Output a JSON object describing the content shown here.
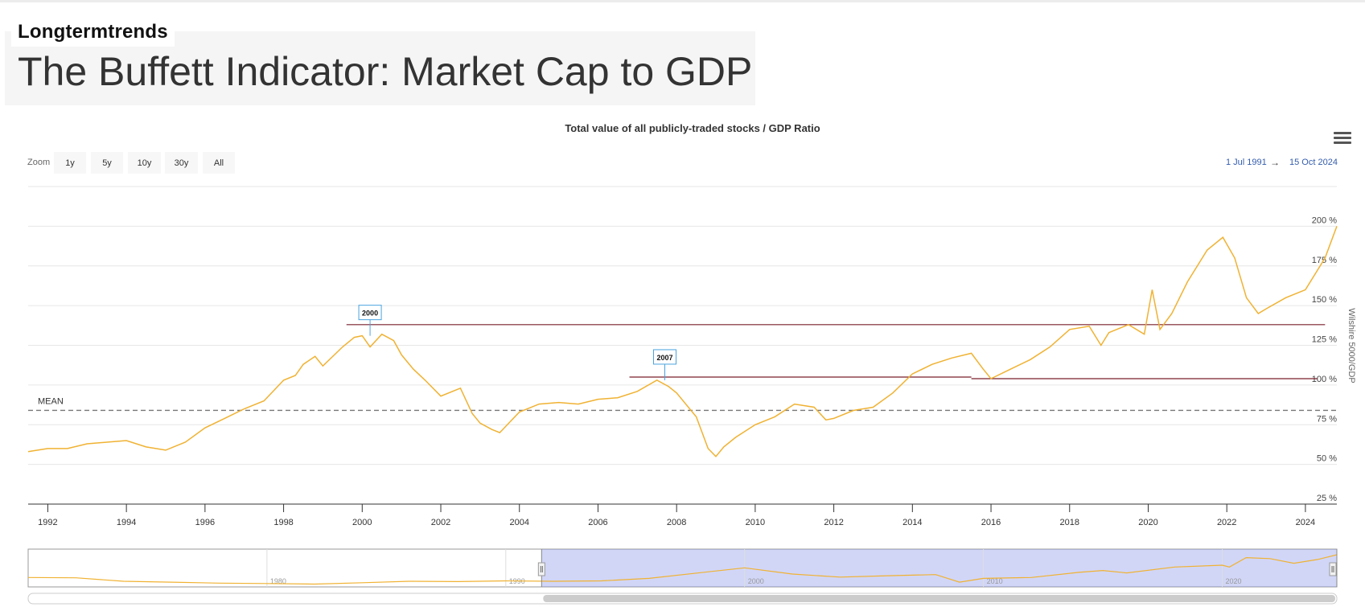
{
  "header": {
    "brand": "Longtermtrends",
    "title": "The Buffett Indicator: Market Cap to GDP"
  },
  "toolbar": {
    "zoom_label": "Zoom",
    "zoom_buttons": [
      "1y",
      "5y",
      "10y",
      "30y",
      "All"
    ],
    "range_from": "1 Jul 1991",
    "range_arrow": "→",
    "range_to": "15 Oct 2024",
    "menu_icon": "hamburger-menu-icon"
  },
  "chart_data": {
    "type": "line",
    "title": "Total value of all publicly-traded stocks / GDP Ratio",
    "ylabel": "Wilshire 5000/GDP",
    "xlim": [
      1991.5,
      2024.8
    ],
    "ylim": [
      25,
      225
    ],
    "yticks": [
      25,
      50,
      75,
      100,
      125,
      150,
      175,
      200
    ],
    "ytick_labels": [
      "25 %",
      "50 %",
      "75 %",
      "100 %",
      "125 %",
      "150 %",
      "175 %",
      "200 %"
    ],
    "xticks": [
      1992,
      1994,
      1996,
      1998,
      2000,
      2002,
      2004,
      2006,
      2008,
      2010,
      2012,
      2014,
      2016,
      2018,
      2020,
      2022,
      2024
    ],
    "line_color": "#f0b232",
    "series": [
      {
        "x": [
          1991.5,
          1992.0,
          1992.5,
          1993.0,
          1993.5,
          1994.0,
          1994.5,
          1995.0,
          1995.5,
          1996.0,
          1996.5,
          1997.0,
          1997.5,
          1998.0,
          1998.3,
          1998.5,
          1998.8,
          1999.0,
          1999.5,
          1999.8,
          2000.0,
          2000.2,
          2000.5,
          2000.8,
          2001.0,
          2001.3,
          2001.6,
          2002.0,
          2002.5,
          2002.8,
          2003.0,
          2003.3,
          2003.5,
          2004.0,
          2004.5,
          2005.0,
          2005.5,
          2006.0,
          2006.5,
          2007.0,
          2007.5,
          2007.8,
          2008.0,
          2008.5,
          2008.8,
          2009.0,
          2009.2,
          2009.5,
          2010.0,
          2010.5,
          2011.0,
          2011.5,
          2011.8,
          2012.0,
          2012.5,
          2013.0,
          2013.5,
          2014.0,
          2014.5,
          2015.0,
          2015.5,
          2015.8,
          2016.0,
          2016.5,
          2017.0,
          2017.5,
          2018.0,
          2018.5,
          2018.8,
          2019.0,
          2019.5,
          2019.9,
          2020.1,
          2020.3,
          2020.6,
          2021.0,
          2021.5,
          2021.9,
          2022.2,
          2022.5,
          2022.8,
          2023.0,
          2023.5,
          2024.0,
          2024.5,
          2024.8
        ],
        "y": [
          58,
          60,
          60,
          63,
          64,
          65,
          61,
          59,
          64,
          73,
          79,
          85,
          90,
          103,
          106,
          113,
          118,
          112,
          124,
          130,
          131,
          124,
          132,
          128,
          119,
          110,
          103,
          93,
          98,
          82,
          76,
          72,
          70,
          83,
          88,
          89,
          88,
          91,
          92,
          96,
          103,
          99,
          95,
          80,
          60,
          55,
          61,
          67,
          75,
          80,
          88,
          86,
          78,
          79,
          84,
          86,
          95,
          107,
          113,
          117,
          120,
          110,
          104,
          110,
          116,
          124,
          135,
          137,
          125,
          133,
          138,
          132,
          160,
          135,
          145,
          165,
          185,
          193,
          180,
          155,
          145,
          148,
          155,
          160,
          180,
          200
        ]
      }
    ],
    "annotations": [
      {
        "label": "MEAN",
        "type": "hline",
        "y": 84,
        "style": "dashed",
        "color": "#777777"
      },
      {
        "type": "segment",
        "x": [
          1999.6,
          2024.5
        ],
        "y": [
          138,
          138
        ],
        "color": "#7a1f2b"
      },
      {
        "type": "segment",
        "x": [
          2006.8,
          2015.5
        ],
        "y": [
          105,
          105
        ],
        "color": "#7a1f2b"
      },
      {
        "type": "segment",
        "x": [
          2015.5,
          2024.3
        ],
        "y": [
          104,
          104
        ],
        "color": "#7a1f2b"
      },
      {
        "type": "flag",
        "x": 2000.2,
        "y": 131,
        "label": "2000"
      },
      {
        "type": "flag",
        "x": 2007.7,
        "y": 103,
        "label": "2007"
      }
    ],
    "navigator": {
      "xlim": [
        1970,
        2024.8
      ],
      "tick_labels": [
        "1980",
        "1990",
        "2000",
        "2010",
        "2020"
      ],
      "x": [
        1970,
        1972,
        1974,
        1976,
        1978,
        1980,
        1982,
        1984,
        1986,
        1988,
        1990,
        1992,
        1994,
        1996,
        1998,
        2000,
        2002,
        2004,
        2006,
        2008,
        2009,
        2010,
        2012,
        2014,
        2015,
        2016,
        2018,
        2020,
        2020.3,
        2021,
        2022,
        2023,
        2024,
        2024.8
      ],
      "y": [
        80,
        78,
        60,
        55,
        50,
        48,
        45,
        52,
        60,
        58,
        62,
        60,
        62,
        75,
        103,
        131,
        98,
        82,
        89,
        95,
        55,
        75,
        80,
        107,
        117,
        104,
        135,
        145,
        135,
        185,
        180,
        155,
        175,
        200
      ],
      "selected": [
        1991.5,
        2024.8
      ]
    }
  }
}
